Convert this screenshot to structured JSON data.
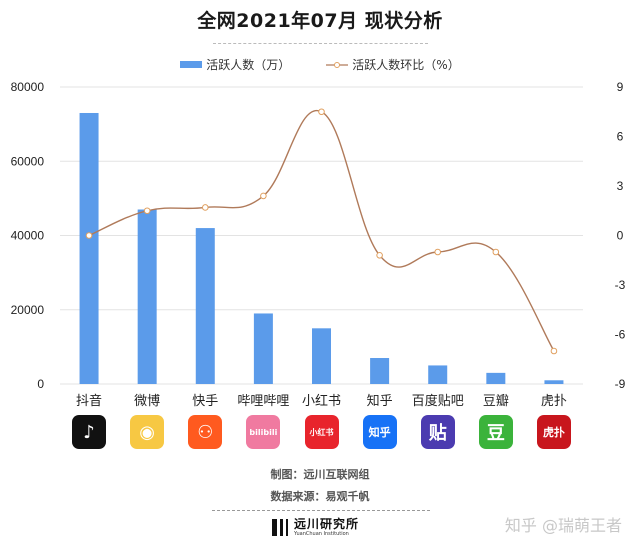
{
  "title": "全网2021年07月  现状分析",
  "legend": {
    "bar_label": "活跃人数（万）",
    "line_label": "活跃人数环比（%）"
  },
  "colors": {
    "bar": "#5b9bea",
    "line": "#b07a5a",
    "marker": "#e0a060",
    "grid": "#e3e3e3"
  },
  "chart_data": {
    "type": "bar+line",
    "title": "全网2021年07月  现状分析",
    "categories": [
      "抖音",
      "微博",
      "快手",
      "哔哩哔哩",
      "小红书",
      "知乎",
      "百度贴吧",
      "豆瓣",
      "虎扑"
    ],
    "series": [
      {
        "name": "活跃人数（万）",
        "type": "bar",
        "axis": "left",
        "values": [
          73000,
          47000,
          42000,
          19000,
          15000,
          7000,
          5000,
          3000,
          1000
        ]
      },
      {
        "name": "活跃人数环比（%）",
        "type": "line",
        "axis": "right",
        "smooth": true,
        "values": [
          0,
          1.5,
          1.7,
          2.4,
          7.5,
          -1.2,
          -1.0,
          -1.0,
          -7.0
        ]
      }
    ],
    "left_axis": {
      "min": 0,
      "max": 80000,
      "ticks": [
        "0",
        "20000",
        "40000",
        "60000",
        "80000"
      ]
    },
    "right_axis": {
      "min": -9,
      "max": 9,
      "ticks": [
        "9",
        "6",
        "3",
        "0",
        "-3",
        "-6",
        "-9"
      ]
    },
    "grid": true,
    "legend_position": "top"
  },
  "apps": [
    {
      "name": "抖音",
      "icon": "douyin-icon",
      "glyph": "♪",
      "bg": "#111111"
    },
    {
      "name": "微博",
      "icon": "weibo-icon",
      "glyph": "◉",
      "bg": "#f7c843"
    },
    {
      "name": "快手",
      "icon": "kuaishou-icon",
      "glyph": "⚇",
      "bg": "#ff5a1f"
    },
    {
      "name": "哔哩哔哩",
      "icon": "bilibili-icon",
      "glyph": "bilibili",
      "bg": "#f07aa0"
    },
    {
      "name": "小红书",
      "icon": "xiaohongshu-icon",
      "glyph": "小红书",
      "bg": "#e8242c"
    },
    {
      "name": "知乎",
      "icon": "zhihu-icon",
      "glyph": "知乎",
      "bg": "#1772f6"
    },
    {
      "name": "百度贴吧",
      "icon": "tieba-icon",
      "glyph": "贴",
      "bg": "#4b3bb0"
    },
    {
      "name": "豆瓣",
      "icon": "douban-icon",
      "glyph": "豆",
      "bg": "#3bb33b"
    },
    {
      "name": "虎扑",
      "icon": "hupu-icon",
      "glyph": "虎扑",
      "bg": "#c8161d"
    }
  ],
  "credits": {
    "made_by": "制图：远川互联网组",
    "source": "数据来源：易观千帆"
  },
  "brand": {
    "cn": "远川研究所",
    "en": "YuanChuan Institution"
  },
  "watermark": "知乎 @瑞萌王者"
}
